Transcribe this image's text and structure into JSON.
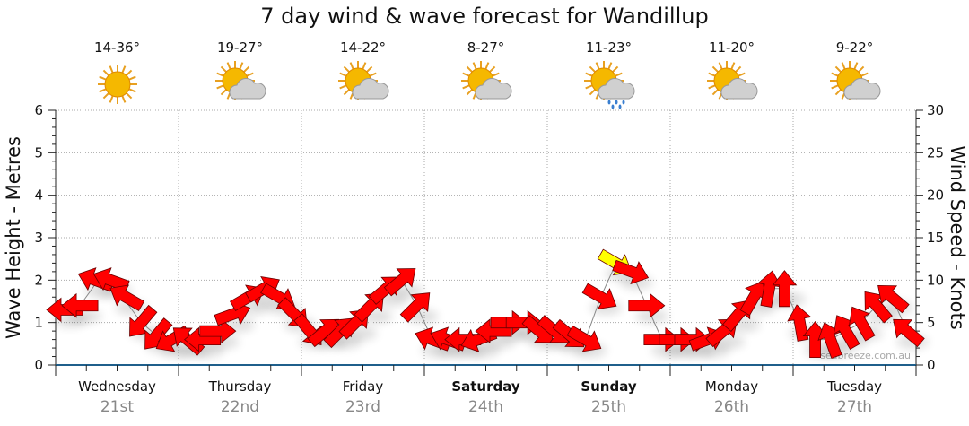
{
  "title": "7 day wind & wave forecast for Wandillup",
  "days": [
    {
      "name": "Wednesday",
      "date": "21st",
      "temp": "14-36°",
      "icon": "sunny-icon",
      "bold": false
    },
    {
      "name": "Thursday",
      "date": "22nd",
      "temp": "19-27°",
      "icon": "partly-cloudy-icon",
      "bold": false
    },
    {
      "name": "Friday",
      "date": "23rd",
      "temp": "14-22°",
      "icon": "partly-cloudy-icon",
      "bold": false
    },
    {
      "name": "Saturday",
      "date": "24th",
      "temp": "8-27°",
      "icon": "partly-cloudy-icon",
      "bold": true
    },
    {
      "name": "Sunday",
      "date": "25th",
      "temp": "11-23°",
      "icon": "cloud-rain-icon",
      "bold": true
    },
    {
      "name": "Monday",
      "date": "26th",
      "temp": "11-20°",
      "icon": "partly-cloudy-icon",
      "bold": false
    },
    {
      "name": "Tuesday",
      "date": "27th",
      "temp": "9-22°",
      "icon": "partly-cloudy-icon",
      "bold": false
    }
  ],
  "watermark": "seabreeze.com.au",
  "colors": {
    "arrow": "#ff0000",
    "arrow_strong": "#ffff00",
    "axis": "#1f5f8b"
  },
  "chart_data": {
    "type": "line",
    "ylabel_left": "Wave Height - Metres",
    "ylabel_right": "Wind Speed - Knots",
    "ylim_left": [
      0,
      6
    ],
    "yticks_left": [
      "0",
      "1",
      "2",
      "3",
      "4",
      "5",
      "6"
    ],
    "ylim_right": [
      0,
      30
    ],
    "yticks_right": [
      "0",
      "5",
      "10",
      "15",
      "20",
      "25",
      "30"
    ],
    "grid": true,
    "wind_series": {
      "name": "Wind (knots, direction arrow)",
      "step_hours": 3,
      "speed": [
        6.5,
        7,
        10,
        10,
        8,
        5,
        3.5,
        3,
        3,
        3,
        4,
        6,
        8,
        9,
        8,
        6,
        4,
        4,
        4,
        5,
        7,
        9,
        10,
        7,
        3,
        3,
        3,
        3,
        4,
        5,
        5,
        4,
        4,
        3.5,
        3,
        8,
        12,
        11,
        7,
        3,
        3,
        3,
        3,
        4,
        6,
        8,
        9,
        9,
        5,
        3,
        3,
        4,
        5,
        7,
        8,
        4
      ],
      "arrow_angle_deg": [
        180,
        180,
        200,
        200,
        210,
        130,
        130,
        150,
        220,
        180,
        0,
        -20,
        -30,
        -30,
        30,
        45,
        50,
        -40,
        -45,
        -45,
        -45,
        -40,
        -40,
        -45,
        200,
        200,
        180,
        160,
        180,
        0,
        0,
        40,
        40,
        40,
        30,
        30,
        30,
        20,
        0,
        0,
        0,
        0,
        -20,
        -40,
        -50,
        -60,
        -80,
        -90,
        -100,
        -90,
        -110,
        -120,
        -120,
        -130,
        -140,
        -140
      ],
      "strong_index": 36
    },
    "wave_series": {
      "name": "Wave Height (m)",
      "values": [
        1.3,
        1.4,
        1.9,
        2.0,
        1.5,
        1.0,
        0.7,
        0.6,
        0.6,
        0.7,
        0.9,
        1.2,
        1.6,
        1.8,
        1.5,
        1.1,
        0.8,
        0.8,
        0.8,
        1.0,
        1.4,
        1.8,
        2.0,
        1.4,
        0.6,
        0.6,
        0.6,
        0.6,
        0.8,
        1.0,
        1.0,
        0.8,
        0.8,
        0.7,
        0.6,
        1.6,
        2.4,
        2.2,
        1.4,
        0.6,
        0.6,
        0.6,
        0.6,
        0.8,
        1.2,
        1.6,
        1.8,
        1.8,
        1.0,
        0.6,
        0.6,
        0.8,
        1.0,
        1.4,
        1.6,
        0.8
      ]
    }
  }
}
